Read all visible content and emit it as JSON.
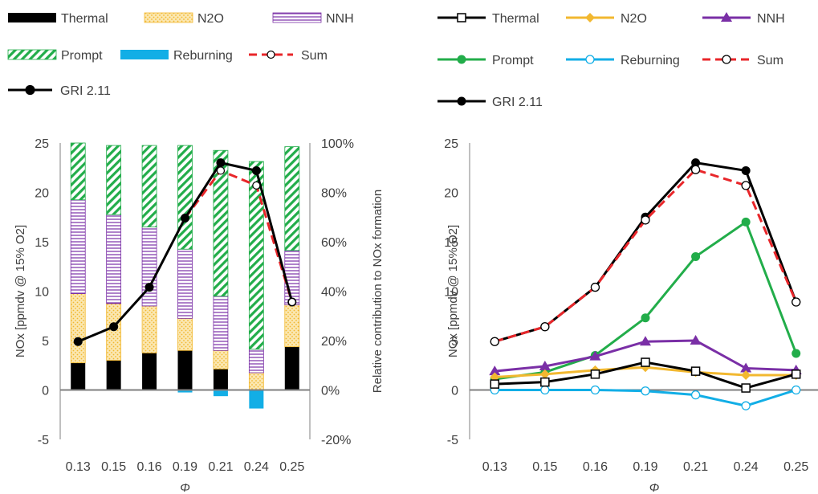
{
  "colors": {
    "thermal": "#000000",
    "n2o": "#f2b830",
    "nnh": "#7a2fa6",
    "prompt": "#22ad4a",
    "reburning": "#12aee6",
    "sum": "#e8262a",
    "gri": "#000000",
    "axis": "#808080",
    "text": "#404040"
  },
  "chart_data": [
    {
      "type": "bar",
      "stacked": true,
      "categories": [
        "0.13",
        "0.15",
        "0.16",
        "0.19",
        "0.21",
        "0.24",
        "0.25"
      ],
      "xlabel": "Φ",
      "ylabel": "NOx [ppmdv @ 15% O2]",
      "ylim": [
        -5,
        25
      ],
      "yticks": [
        "-5",
        "0",
        "5",
        "10",
        "15",
        "20",
        "25"
      ],
      "y2label": "Relative contribution to NOx formation",
      "y2lim": [
        -20,
        100
      ],
      "y2ticks": [
        "-20%",
        "0%",
        "20%",
        "40%",
        "60%",
        "80%",
        "100%"
      ],
      "legend": {
        "position": "top",
        "items": [
          {
            "key": "thermal",
            "label": "Thermal"
          },
          {
            "key": "n2o",
            "label": "N2O"
          },
          {
            "key": "nnh",
            "label": "NNH"
          },
          {
            "key": "prompt",
            "label": "Prompt"
          },
          {
            "key": "reburning",
            "label": "Reburning"
          },
          {
            "key": "sum",
            "label": "Sum"
          },
          {
            "key": "gri",
            "label": "GRI 2.11"
          }
        ]
      },
      "series": [
        {
          "key": "thermal",
          "name": "Thermal",
          "axis": "right",
          "values": [
            11,
            12,
            15,
            16,
            8.5,
            0,
            17.5
          ]
        },
        {
          "key": "n2o",
          "name": "N2O",
          "axis": "right",
          "values": [
            28,
            23,
            19,
            13,
            7.5,
            7,
            17
          ]
        },
        {
          "key": "nnh",
          "name": "NNH",
          "axis": "right",
          "values": [
            38,
            36,
            32,
            28,
            22,
            9.5,
            22
          ]
        },
        {
          "key": "prompt",
          "name": "Prompt",
          "axis": "right",
          "values": [
            23,
            28,
            33,
            42,
            59,
            76,
            42
          ]
        },
        {
          "key": "reburning",
          "name": "Reburning",
          "axis": "right",
          "values": [
            0,
            0,
            0,
            -1,
            -2.5,
            -7.5,
            0
          ]
        },
        {
          "key": "sum",
          "name": "Sum",
          "axis": "left",
          "type": "line",
          "values": [
            null,
            null,
            null,
            null,
            22.2,
            20.7,
            8.9
          ]
        },
        {
          "key": "gri",
          "name": "GRI 2.11",
          "axis": "left",
          "type": "line",
          "values": [
            4.9,
            6.4,
            10.4,
            17.4,
            23.0,
            22.2,
            8.9
          ]
        }
      ]
    },
    {
      "type": "line",
      "categories": [
        "0.13",
        "0.15",
        "0.16",
        "0.19",
        "0.21",
        "0.24",
        "0.25"
      ],
      "xlabel": "Φ",
      "ylabel": "NOx [ppmdv @ 15% O2]",
      "ylim": [
        -5,
        25
      ],
      "yticks": [
        "-5",
        "0",
        "5",
        "10",
        "15",
        "20",
        "25"
      ],
      "legend": {
        "position": "top",
        "items": [
          {
            "key": "thermal",
            "label": "Thermal"
          },
          {
            "key": "n2o",
            "label": "N2O"
          },
          {
            "key": "nnh",
            "label": "NNH"
          },
          {
            "key": "prompt",
            "label": "Prompt"
          },
          {
            "key": "reburning",
            "label": "Reburning"
          },
          {
            "key": "sum",
            "label": "Sum"
          },
          {
            "key": "gri",
            "label": "GRI 2.11"
          }
        ]
      },
      "series": [
        {
          "key": "thermal",
          "name": "Thermal",
          "marker": "square",
          "values": [
            0.6,
            0.8,
            1.6,
            2.8,
            1.9,
            0.2,
            1.6
          ]
        },
        {
          "key": "n2o",
          "name": "N2O",
          "marker": "diamond",
          "values": [
            1.3,
            1.6,
            2.0,
            2.3,
            1.8,
            1.5,
            1.5
          ]
        },
        {
          "key": "nnh",
          "name": "NNH",
          "marker": "triangle",
          "values": [
            1.9,
            2.4,
            3.4,
            4.9,
            5.0,
            2.2,
            2.0
          ]
        },
        {
          "key": "prompt",
          "name": "Prompt",
          "marker": "circle",
          "values": [
            1.1,
            1.8,
            3.5,
            7.3,
            13.5,
            17.0,
            3.7
          ]
        },
        {
          "key": "reburning",
          "name": "Reburning",
          "marker": "open-circle",
          "values": [
            0.0,
            0.0,
            0.0,
            -0.1,
            -0.5,
            -1.6,
            0.0
          ]
        },
        {
          "key": "sum",
          "name": "Sum",
          "marker": "open-circle",
          "dashed": true,
          "values": [
            4.9,
            6.4,
            10.4,
            17.2,
            22.3,
            20.7,
            8.9
          ]
        },
        {
          "key": "gri",
          "name": "GRI 2.11",
          "marker": "circle",
          "values": [
            4.9,
            6.4,
            10.4,
            17.5,
            23.0,
            22.2,
            8.9
          ]
        }
      ]
    }
  ]
}
